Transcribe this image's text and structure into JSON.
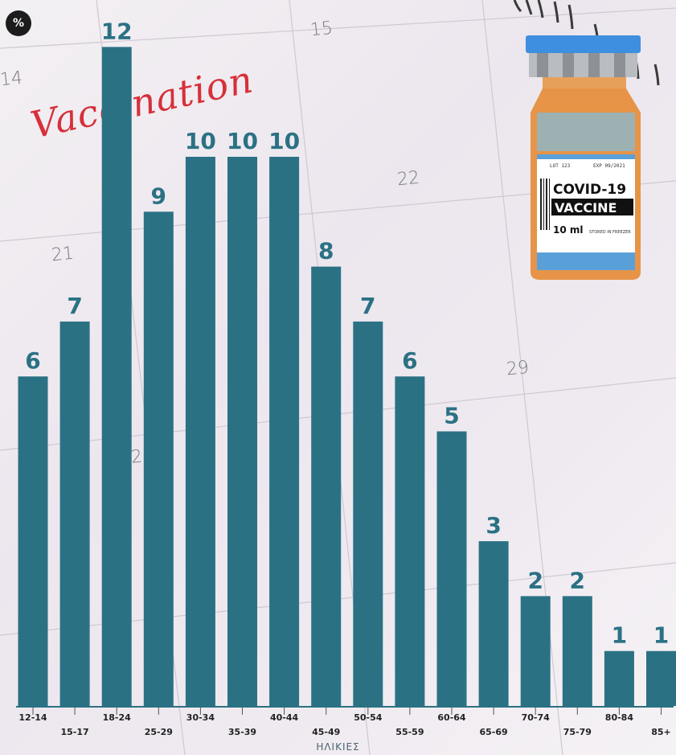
{
  "unit_badge": "%",
  "decor": {
    "calendar_numbers": [
      "14",
      "15",
      "21",
      "22",
      "29",
      "2"
    ],
    "handwriting": "Vaccination",
    "vial": {
      "lot_text": "LOT 123",
      "exp_text": "EXP 09/2021",
      "line1": "COVID-19",
      "line2": "VACCINE",
      "volume": "10 ml",
      "storage": "STORED IN FREEZER"
    }
  },
  "colors": {
    "bar": "#2b7184",
    "value_label": "#2b7184",
    "tick_label": "#222222"
  },
  "chart_data": {
    "type": "bar",
    "xlabel": "ΗΛΙΚΙΕΣ",
    "categories": [
      "12-14",
      "15-17",
      "18-24",
      "25-29",
      "30-34",
      "35-39",
      "40-44",
      "45-49",
      "50-54",
      "55-59",
      "60-64",
      "65-69",
      "70-74",
      "75-79",
      "80-84",
      "85+"
    ],
    "values": [
      6,
      7,
      12,
      9,
      10,
      10,
      10,
      8,
      7,
      6,
      5,
      3,
      2,
      2,
      1,
      1
    ],
    "value_labels": [
      "6",
      "7",
      "12",
      "9",
      "10",
      "10",
      "10",
      "8",
      "7",
      "6",
      "5",
      "3",
      "2",
      "2",
      "1",
      "1"
    ],
    "ylim": [
      0,
      12
    ],
    "grid": false,
    "legend": "none"
  }
}
